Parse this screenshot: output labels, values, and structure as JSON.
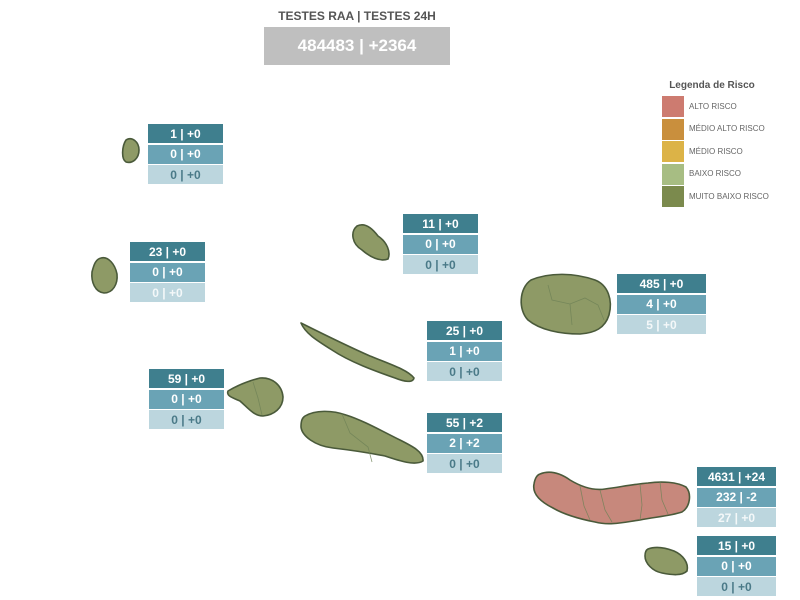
{
  "header": {
    "title": "TESTES RAA | TESTES 24H",
    "total": "484483 | +2364"
  },
  "legend": {
    "title": "Legenda de Risco",
    "items": [
      {
        "label": "ALTO RISCO",
        "color": "#cd7b70"
      },
      {
        "label": "MÉDIO ALTO RISCO",
        "color": "#c98f3d"
      },
      {
        "label": "MÉDIO RISCO",
        "color": "#dcb347"
      },
      {
        "label": "BAIXO RISCO",
        "color": "#a7bd83"
      },
      {
        "label": "MUITO BAIXO RISCO",
        "color": "#7b8a4d"
      }
    ]
  },
  "islands": [
    {
      "id": "corvo",
      "rows": [
        "1 | +0",
        "0 | +0",
        "0 | +0"
      ],
      "risk_color": "#8e9a66"
    },
    {
      "id": "flores",
      "rows": [
        "23 | +0",
        "0 | +0",
        "0 | +0"
      ],
      "risk_color": "#8e9a66"
    },
    {
      "id": "graciosa",
      "rows": [
        "11 | +0",
        "0 | +0",
        "0 | +0"
      ],
      "risk_color": "#8e9a66"
    },
    {
      "id": "terceira",
      "rows": [
        "485 | +0",
        "4 | +0",
        "5 | +0"
      ],
      "risk_color": "#8e9a66"
    },
    {
      "id": "sao-jorge",
      "rows": [
        "25 | +0",
        "1 | +0",
        "0 | +0"
      ],
      "risk_color": "#8e9a66"
    },
    {
      "id": "faial",
      "rows": [
        "59 | +0",
        "0 | +0",
        "0 | +0"
      ],
      "risk_color": "#8e9a66"
    },
    {
      "id": "pico",
      "rows": [
        "55 | +2",
        "2 | +2",
        "0 | +0"
      ],
      "risk_color": "#8e9a66"
    },
    {
      "id": "sao-miguel",
      "rows": [
        "4631 | +24",
        "232 | -2",
        "27 | +0"
      ],
      "risk_color": "#c7887c"
    },
    {
      "id": "santa-maria",
      "rows": [
        "15 | +0",
        "0 | +0",
        "0 | +0"
      ],
      "risk_color": "#8e9a66"
    }
  ]
}
